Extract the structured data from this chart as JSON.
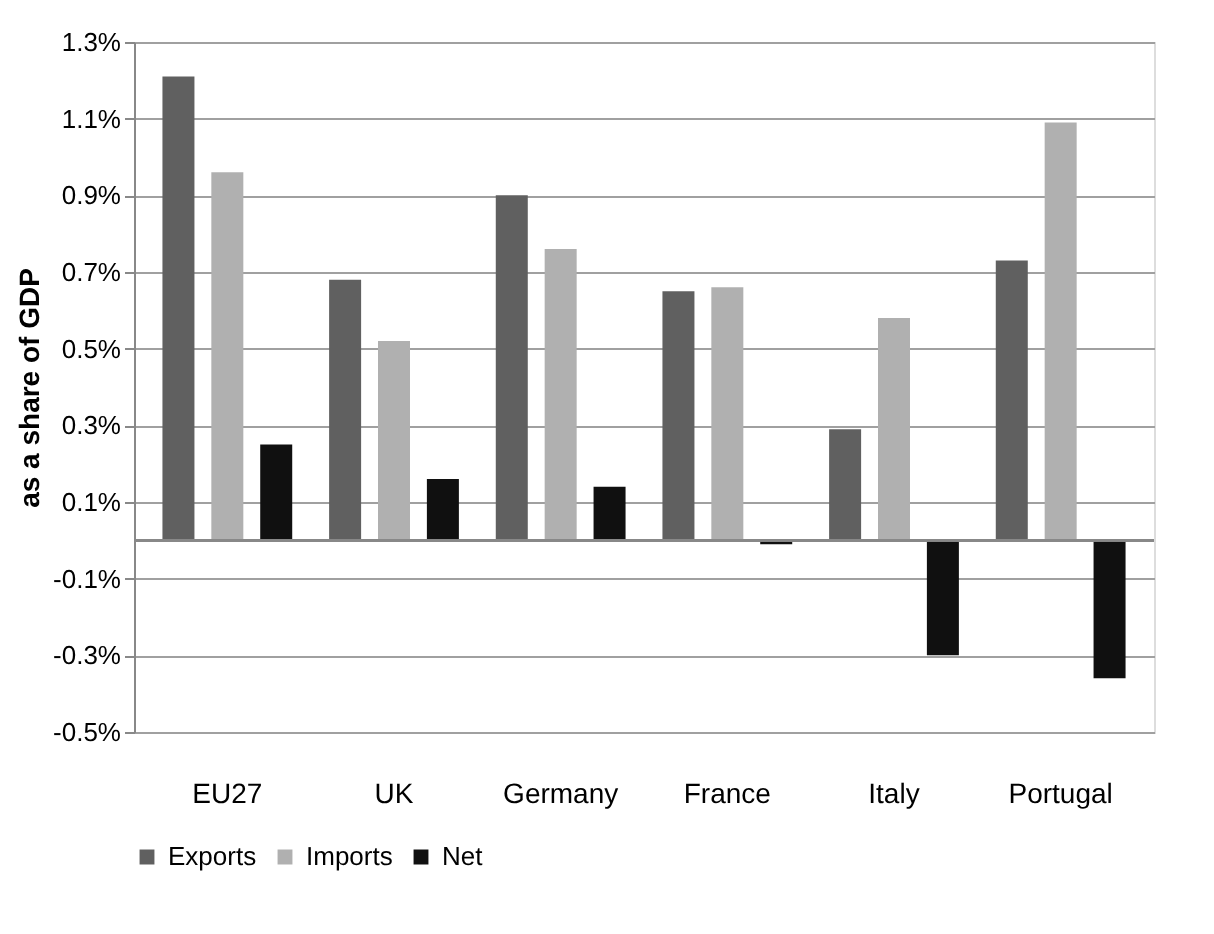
{
  "chart_data": {
    "type": "bar",
    "ylabel": "as a share of GDP",
    "categories": [
      "EU27",
      "UK",
      "Germany",
      "France",
      "Italy",
      "Portugal"
    ],
    "series": [
      {
        "name": "Exports",
        "color": "#606060",
        "values": [
          1.21,
          0.68,
          0.9,
          0.65,
          0.29,
          0.73
        ]
      },
      {
        "name": "Imports",
        "color": "#b0b0b0",
        "values": [
          0.96,
          0.52,
          0.76,
          0.66,
          0.58,
          1.09
        ]
      },
      {
        "name": "Net",
        "color": "#101010",
        "values": [
          0.25,
          0.16,
          0.14,
          -0.01,
          -0.3,
          -0.36
        ]
      }
    ],
    "ylim": [
      -0.5,
      1.3
    ],
    "yticks": [
      {
        "value": -0.5,
        "label": "-0.5%"
      },
      {
        "value": -0.3,
        "label": "-0.3%"
      },
      {
        "value": -0.1,
        "label": "-0.1%"
      },
      {
        "value": 0.1,
        "label": "0.1%"
      },
      {
        "value": 0.3,
        "label": "0.3%"
      },
      {
        "value": 0.5,
        "label": "0.5%"
      },
      {
        "value": 0.7,
        "label": "0.7%"
      },
      {
        "value": 0.9,
        "label": "0.9%"
      },
      {
        "value": 1.1,
        "label": "1.1%"
      },
      {
        "value": 1.3,
        "label": "1.3%"
      }
    ],
    "grid": "y",
    "legend": "bottom"
  }
}
